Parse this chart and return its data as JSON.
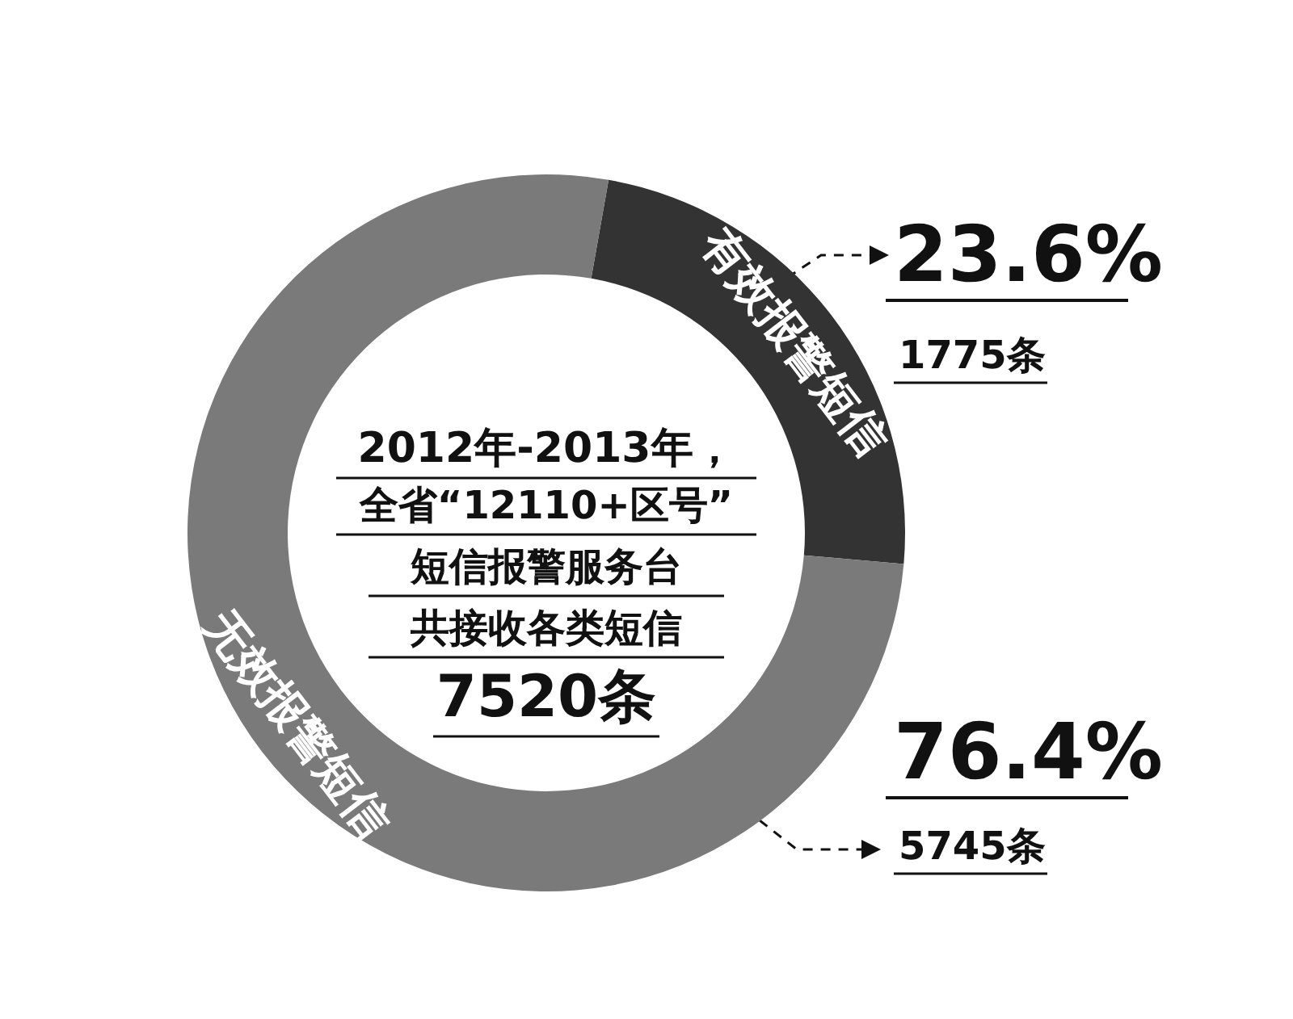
{
  "chart_data": {
    "type": "donut",
    "categories": [
      "有效报警短信",
      "无效报警短信"
    ],
    "values": [
      23.6,
      76.4
    ],
    "colors": [
      "#333333",
      "#7a7a7a"
    ],
    "value_labels": [
      "23.6%",
      "76.4%"
    ],
    "annotations": [
      "2012年-2013年，",
      "全省“12110+区号”",
      "短信报警服务台",
      "共接收各类短信",
      "7520条",
      "1775条",
      "5745条"
    ],
    "legend": false
  }
}
